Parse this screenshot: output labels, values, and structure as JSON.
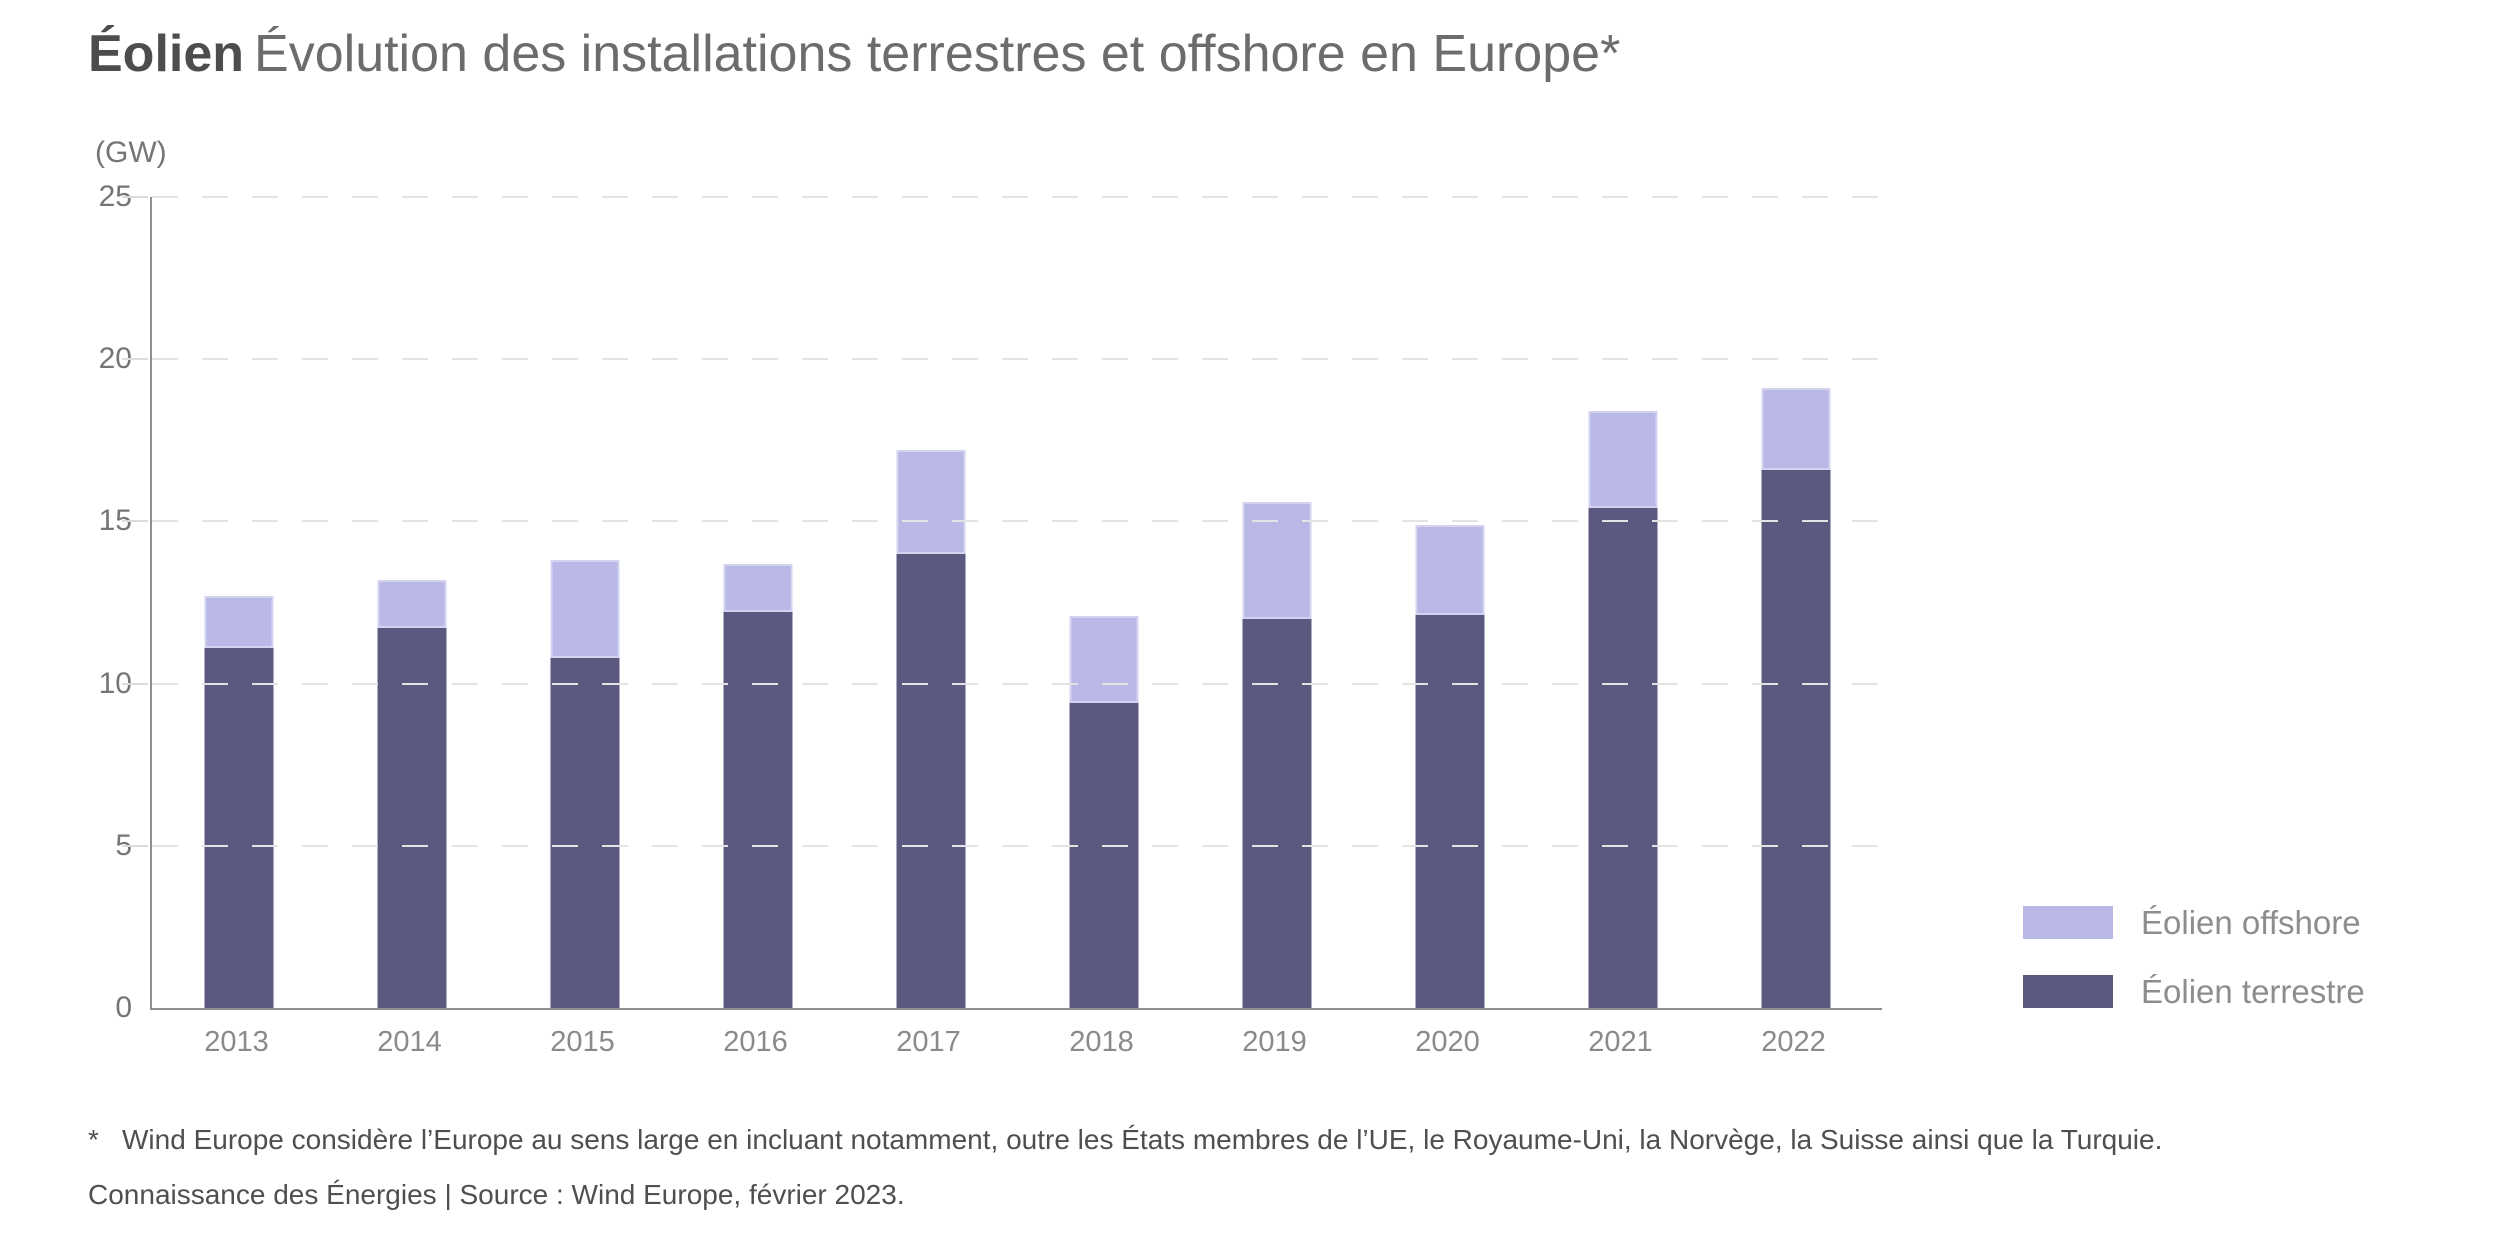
{
  "title": {
    "bold": "Éolien",
    "rest": "Évolution des installations terrestres et offshore en Europe*"
  },
  "axis_unit": "(GW)",
  "chart_data": {
    "type": "bar",
    "stacked": true,
    "title": "Éolien — Évolution des installations terrestres et offshore en Europe*",
    "ylabel": "(GW)",
    "xlabel": "",
    "ylim": [
      0,
      25
    ],
    "yticks": [
      0,
      5,
      10,
      15,
      20,
      25
    ],
    "grid": "horizontal-dashed",
    "legend_position": "right-bottom",
    "categories": [
      "2013",
      "2014",
      "2015",
      "2016",
      "2017",
      "2018",
      "2019",
      "2020",
      "2021",
      "2022"
    ],
    "series": [
      {
        "name": "Éolien terrestre",
        "color": "#5b5980",
        "values": [
          11.1,
          11.7,
          10.8,
          12.2,
          14.0,
          9.4,
          12.0,
          12.1,
          15.4,
          16.6
        ]
      },
      {
        "name": "Éolien offshore",
        "color": "#b9b8e6",
        "values": [
          1.6,
          1.5,
          3.0,
          1.5,
          3.2,
          2.7,
          3.6,
          2.8,
          3.0,
          2.5
        ]
      }
    ]
  },
  "legend": {
    "items": [
      {
        "label": "Éolien offshore",
        "color": "#b9b8e6"
      },
      {
        "label": "Éolien terrestre",
        "color": "#5b5980"
      }
    ]
  },
  "footnotes": {
    "asterisk": "*",
    "line1": "Wind Europe considère l’Europe au sens large en incluant notamment, outre les États membres de l’UE, le Royaume-Uni, la Norvège, la Suisse ainsi que la Turquie.",
    "line2": "Connaissance des Énergies | Source : Wind Europe, février 2023."
  },
  "colors": {
    "axis": "#8f8f8f",
    "gridline": "#e3e3e3",
    "tick_label": "#757575",
    "x_label": "#8a8a8a",
    "legend_label": "#8d8d8d",
    "footnote": "#4f4f4f",
    "title_bold": "#4d4d4d",
    "title_rest": "#6c6c6c"
  }
}
